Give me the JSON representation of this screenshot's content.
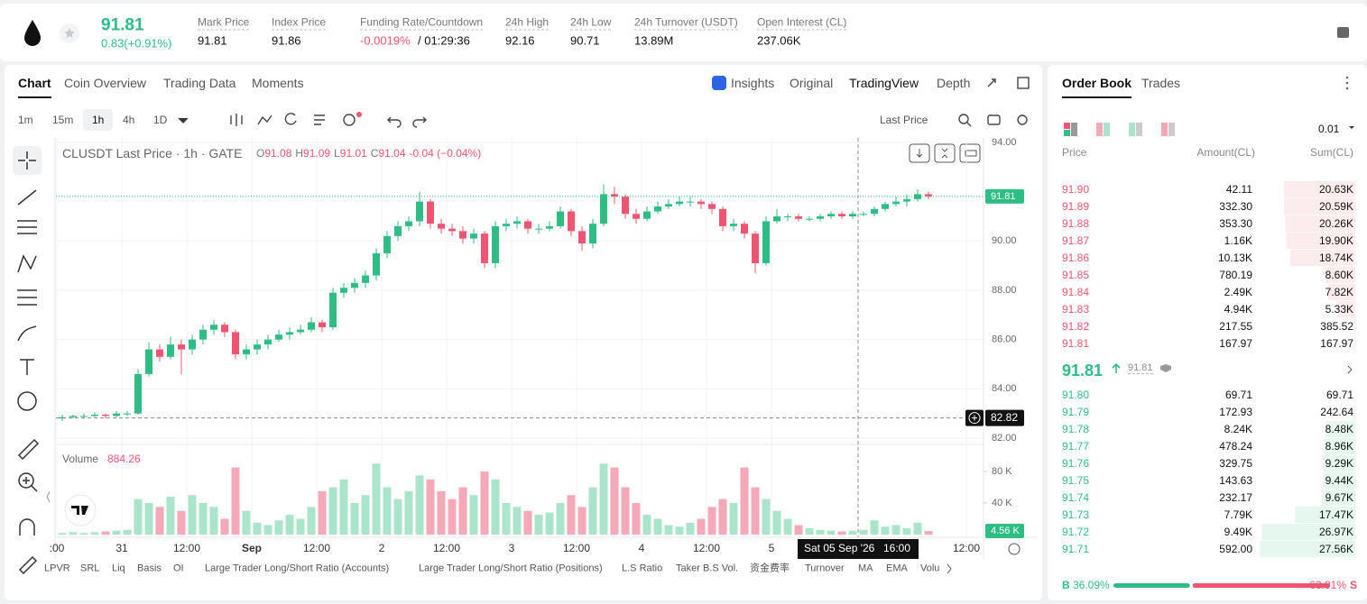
{
  "header": {
    "price": "91.81",
    "change": "0.83(+0.91%)",
    "stats": [
      {
        "label": "Mark Price",
        "value": "91.81"
      },
      {
        "label": "Index Price",
        "value": "91.86"
      },
      {
        "label": "Funding Rate/Countdown",
        "value": "-0.0019%",
        "extra": "/ 01:29:36"
      },
      {
        "label": "24h High",
        "value": "92.16"
      },
      {
        "label": "24h Low",
        "value": "90.71"
      },
      {
        "label": "24h Turnover (USDT)",
        "value": "13.89M"
      },
      {
        "label": "Open Interest (CL)",
        "value": "237.06K"
      }
    ]
  },
  "tabs": [
    "Chart",
    "Coin Overview",
    "Trading Data",
    "Moments"
  ],
  "view_tabs": [
    "Insights",
    "Original",
    "TradingView",
    "Depth"
  ],
  "intervals": [
    "1m",
    "15m",
    "1h",
    "4h",
    "1D"
  ],
  "price_source": "Last Price",
  "indicators": [
    "LPVR",
    "SRL",
    "Liq",
    "Basis",
    "OI",
    "Large Trader Long/Short Ratio (Accounts)",
    "Large Trader Long/Short Ratio (Positions)",
    "L.S Ratio",
    "Taker B.S Vol.",
    "资金费率",
    "Turnover",
    "MA",
    "EMA",
    "Volu"
  ],
  "chart_data": {
    "type": "candlestick",
    "title": "CLUSDT Last Price · 1h · GATE",
    "ohlc": [
      {
        "k": "O",
        "v": "91.08"
      },
      {
        "k": "H",
        "v": "91.09"
      },
      {
        "k": "L",
        "v": "91.01"
      },
      {
        "k": "C",
        "v": "91.04"
      }
    ],
    "ohlc_change": "-0.04 (−0.04%)",
    "volume_title": "Volume",
    "volume_value": "884.26",
    "volume_last_label": "4.56 K",
    "up_color": "#2ebd85",
    "down_color": "#ef5470",
    "vol_up_color": "#a9e4cb",
    "vol_down_color": "#f5a9b8",
    "xlim": [
      0,
      171
    ],
    "ylim": [
      82,
      94
    ],
    "vlim": [
      0,
      100000
    ],
    "grid": true,
    "xticks": [
      {
        "value": 0,
        "label": ":00"
      },
      {
        "value": 12,
        "label": "31"
      },
      {
        "value": 24,
        "label": "12:00"
      },
      {
        "value": 36,
        "label": "Sep"
      },
      {
        "value": 48,
        "label": "12:00"
      },
      {
        "value": 60,
        "label": "2"
      },
      {
        "value": 72,
        "label": "12:00"
      },
      {
        "value": 84,
        "label": "3"
      },
      {
        "value": 96,
        "label": "12:00"
      },
      {
        "value": 108,
        "label": "4"
      },
      {
        "value": 120,
        "label": "12:00"
      },
      {
        "value": 132,
        "label": "5"
      },
      {
        "value": 168,
        "label": "12:00"
      }
    ],
    "yticks": [
      {
        "value": 94,
        "label": "94.00"
      },
      {
        "value": 90,
        "label": "90.00"
      },
      {
        "value": 88,
        "label": "88.00"
      },
      {
        "value": 86,
        "label": "86.00"
      },
      {
        "value": 84,
        "label": "84.00"
      },
      {
        "value": 82,
        "label": "82.00"
      }
    ],
    "vticks": [
      {
        "value": 80000,
        "label": "80 K"
      },
      {
        "value": 40000,
        "label": "40 K"
      }
    ],
    "last_price": {
      "value": 91.81,
      "label": "91.81"
    },
    "crosshair": {
      "x": 148,
      "date_label": "Sat 05 Sep '26",
      "time_label": "16:00",
      "price": {
        "value": 82.82,
        "label": "82.82"
      }
    },
    "x": [
      1,
      3,
      5,
      7,
      9,
      11,
      13,
      15,
      17,
      19,
      21,
      23,
      25,
      27,
      29,
      31,
      33,
      35,
      37,
      39,
      41,
      43,
      45,
      47,
      49,
      51,
      53,
      55,
      57,
      59,
      61,
      63,
      65,
      67,
      69,
      71,
      73,
      75,
      77,
      79,
      81,
      83,
      85,
      87,
      89,
      91,
      93,
      95,
      97,
      99,
      101,
      103,
      105,
      107,
      109,
      111,
      113,
      115,
      117,
      119,
      121,
      123,
      125,
      127,
      129,
      131,
      133,
      135,
      137,
      139,
      141,
      143,
      145,
      147,
      149,
      151,
      153,
      155,
      157,
      159,
      161
    ],
    "candles": [
      [
        82.8,
        82.95,
        82.7,
        82.85
      ],
      [
        82.85,
        82.95,
        82.8,
        82.9
      ],
      [
        82.9,
        83.0,
        82.8,
        82.9
      ],
      [
        82.9,
        83.05,
        82.85,
        82.95
      ],
      [
        82.95,
        83.0,
        82.8,
        82.9
      ],
      [
        82.9,
        83.1,
        82.85,
        83.0
      ],
      [
        83.0,
        83.1,
        82.9,
        83.0
      ],
      [
        83.0,
        84.8,
        82.95,
        84.6
      ],
      [
        84.6,
        85.9,
        84.5,
        85.6
      ],
      [
        85.6,
        85.8,
        85.1,
        85.3
      ],
      [
        85.3,
        86.1,
        85.2,
        85.8
      ],
      [
        85.8,
        86.0,
        84.6,
        85.6
      ],
      [
        85.6,
        86.2,
        85.4,
        86.0
      ],
      [
        86.0,
        86.6,
        85.8,
        86.4
      ],
      [
        86.4,
        86.8,
        86.2,
        86.6
      ],
      [
        86.6,
        86.7,
        86.1,
        86.3
      ],
      [
        86.3,
        86.4,
        85.2,
        85.4
      ],
      [
        85.4,
        85.8,
        85.2,
        85.6
      ],
      [
        85.6,
        86.0,
        85.4,
        85.8
      ],
      [
        85.8,
        86.2,
        85.6,
        86.0
      ],
      [
        86.0,
        86.4,
        85.9,
        86.2
      ],
      [
        86.2,
        86.5,
        86.0,
        86.3
      ],
      [
        86.3,
        86.6,
        86.2,
        86.4
      ],
      [
        86.4,
        86.9,
        86.3,
        86.7
      ],
      [
        86.7,
        86.8,
        86.3,
        86.5
      ],
      [
        86.5,
        88.1,
        86.4,
        87.9
      ],
      [
        87.9,
        88.3,
        87.7,
        88.1
      ],
      [
        88.1,
        88.5,
        87.9,
        88.3
      ],
      [
        88.3,
        88.8,
        88.1,
        88.6
      ],
      [
        88.6,
        89.7,
        88.4,
        89.5
      ],
      [
        89.5,
        90.4,
        89.3,
        90.2
      ],
      [
        90.2,
        90.8,
        90.0,
        90.6
      ],
      [
        90.6,
        91.0,
        90.4,
        90.8
      ],
      [
        90.8,
        92.0,
        90.6,
        91.6
      ],
      [
        91.6,
        91.7,
        90.5,
        90.7
      ],
      [
        90.7,
        90.9,
        90.3,
        90.5
      ],
      [
        90.5,
        90.7,
        90.2,
        90.4
      ],
      [
        90.4,
        90.6,
        89.9,
        90.1
      ],
      [
        90.1,
        90.5,
        89.9,
        90.3
      ],
      [
        90.3,
        90.4,
        88.9,
        89.1
      ],
      [
        89.1,
        90.8,
        88.9,
        90.6
      ],
      [
        90.6,
        90.9,
        90.4,
        90.7
      ],
      [
        90.7,
        91.0,
        90.5,
        90.8
      ],
      [
        90.8,
        90.9,
        90.3,
        90.5
      ],
      [
        90.5,
        90.7,
        90.3,
        90.5
      ],
      [
        90.5,
        90.8,
        90.4,
        90.6
      ],
      [
        90.6,
        91.4,
        90.5,
        91.2
      ],
      [
        91.2,
        91.3,
        90.2,
        90.4
      ],
      [
        90.4,
        90.6,
        89.6,
        89.9
      ],
      [
        89.9,
        90.9,
        89.7,
        90.7
      ],
      [
        90.7,
        92.3,
        90.6,
        91.9
      ],
      [
        91.9,
        92.2,
        91.5,
        91.8
      ],
      [
        91.8,
        91.9,
        90.9,
        91.1
      ],
      [
        91.1,
        91.3,
        90.7,
        90.9
      ],
      [
        90.9,
        91.4,
        90.8,
        91.2
      ],
      [
        91.2,
        91.6,
        91.1,
        91.4
      ],
      [
        91.4,
        91.7,
        91.3,
        91.5
      ],
      [
        91.5,
        91.8,
        91.4,
        91.6
      ],
      [
        91.6,
        91.8,
        91.4,
        91.6
      ],
      [
        91.6,
        91.7,
        91.3,
        91.5
      ],
      [
        91.5,
        91.6,
        91.1,
        91.3
      ],
      [
        91.3,
        91.4,
        90.4,
        90.6
      ],
      [
        90.6,
        90.9,
        90.4,
        90.7
      ],
      [
        90.7,
        90.8,
        90.1,
        90.3
      ],
      [
        90.3,
        90.4,
        88.7,
        89.1
      ],
      [
        89.1,
        91.0,
        89.0,
        90.8
      ],
      [
        90.8,
        91.3,
        90.7,
        91.0
      ],
      [
        91.0,
        91.1,
        90.8,
        91.0
      ],
      [
        91.0,
        91.1,
        90.8,
        90.9
      ],
      [
        90.9,
        91.0,
        90.8,
        90.9
      ],
      [
        90.9,
        91.1,
        90.8,
        91.0
      ],
      [
        91.0,
        91.2,
        90.9,
        91.1
      ],
      [
        91.1,
        91.2,
        90.9,
        91.0
      ],
      [
        91.0,
        91.2,
        90.9,
        91.1
      ],
      [
        91.1,
        91.2,
        91.0,
        91.1
      ],
      [
        91.1,
        91.4,
        91.0,
        91.3
      ],
      [
        91.3,
        91.6,
        91.2,
        91.5
      ],
      [
        91.5,
        91.8,
        91.4,
        91.6
      ],
      [
        91.6,
        91.9,
        91.4,
        91.7
      ],
      [
        91.7,
        92.1,
        91.6,
        91.9
      ],
      [
        91.9,
        92.0,
        91.7,
        91.81
      ]
    ],
    "volumes": [
      2000,
      3000,
      2000,
      3000,
      4000,
      5000,
      6000,
      45000,
      40000,
      35000,
      48000,
      30000,
      50000,
      40000,
      35000,
      20000,
      85000,
      30000,
      15000,
      12000,
      18000,
      25000,
      20000,
      35000,
      55000,
      60000,
      70000,
      40000,
      50000,
      90000,
      60000,
      45000,
      55000,
      75000,
      70000,
      55000,
      45000,
      60000,
      50000,
      80000,
      70000,
      40000,
      35000,
      30000,
      25000,
      28000,
      40000,
      50000,
      35000,
      60000,
      90000,
      85000,
      60000,
      40000,
      25000,
      20000,
      12000,
      10000,
      15000,
      20000,
      35000,
      45000,
      40000,
      85000,
      60000,
      45000,
      30000,
      20000,
      12000,
      8000,
      6000,
      5000,
      4000,
      5000,
      6000,
      18000,
      10000,
      12000,
      8000,
      15000,
      4560
    ]
  },
  "order_book": {
    "tabs": [
      "Order Book",
      "Trades"
    ],
    "precision": "0.01",
    "columns": [
      "Price",
      "Amount(CL)",
      "Sum(CL)"
    ],
    "sum_max": 30000,
    "asks": [
      {
        "price": "91.90",
        "amount": "42.11",
        "sum": {
          "value": 20630,
          "label": "20.63K"
        }
      },
      {
        "price": "91.89",
        "amount": "332.30",
        "sum": {
          "value": 20590,
          "label": "20.59K"
        }
      },
      {
        "price": "91.88",
        "amount": "353.30",
        "sum": {
          "value": 20260,
          "label": "20.26K"
        }
      },
      {
        "price": "91.87",
        "amount": "1.16K",
        "sum": {
          "value": 19900,
          "label": "19.90K"
        }
      },
      {
        "price": "91.86",
        "amount": "10.13K",
        "sum": {
          "value": 18740,
          "label": "18.74K"
        }
      },
      {
        "price": "91.85",
        "amount": "780.19",
        "sum": {
          "value": 8600,
          "label": "8.60K"
        }
      },
      {
        "price": "91.84",
        "amount": "2.49K",
        "sum": {
          "value": 7820,
          "label": "7.82K"
        }
      },
      {
        "price": "91.83",
        "amount": "4.94K",
        "sum": {
          "value": 5330,
          "label": "5.33K"
        }
      },
      {
        "price": "91.82",
        "amount": "217.55",
        "sum": {
          "value": 385.52,
          "label": "385.52"
        }
      },
      {
        "price": "91.81",
        "amount": "167.97",
        "sum": {
          "value": 167.97,
          "label": "167.97"
        }
      }
    ],
    "mid": {
      "price": "91.81",
      "mark": "91.81"
    },
    "bids": [
      {
        "price": "91.80",
        "amount": "69.71",
        "sum": {
          "value": 69.71,
          "label": "69.71"
        }
      },
      {
        "price": "91.79",
        "amount": "172.93",
        "sum": {
          "value": 242.64,
          "label": "242.64"
        }
      },
      {
        "price": "91.78",
        "amount": "8.24K",
        "sum": {
          "value": 8480,
          "label": "8.48K"
        }
      },
      {
        "price": "91.77",
        "amount": "478.24",
        "sum": {
          "value": 8960,
          "label": "8.96K"
        }
      },
      {
        "price": "91.76",
        "amount": "329.75",
        "sum": {
          "value": 9290,
          "label": "9.29K"
        }
      },
      {
        "price": "91.75",
        "amount": "143.63",
        "sum": {
          "value": 9440,
          "label": "9.44K"
        }
      },
      {
        "price": "91.74",
        "amount": "232.17",
        "sum": {
          "value": 9670,
          "label": "9.67K"
        }
      },
      {
        "price": "91.73",
        "amount": "7.79K",
        "sum": {
          "value": 17470,
          "label": "17.47K"
        }
      },
      {
        "price": "91.72",
        "amount": "9.49K",
        "sum": {
          "value": 26970,
          "label": "26.97K"
        }
      },
      {
        "price": "91.71",
        "amount": "592.00",
        "sum": {
          "value": 27560,
          "label": "27.56K"
        }
      }
    ],
    "ratio": {
      "buy_tag": "B",
      "buy": {
        "value": 36.09,
        "label": "36.09%"
      },
      "sell": {
        "value": 63.91,
        "label": "63.91%"
      },
      "sell_tag": "S"
    }
  }
}
